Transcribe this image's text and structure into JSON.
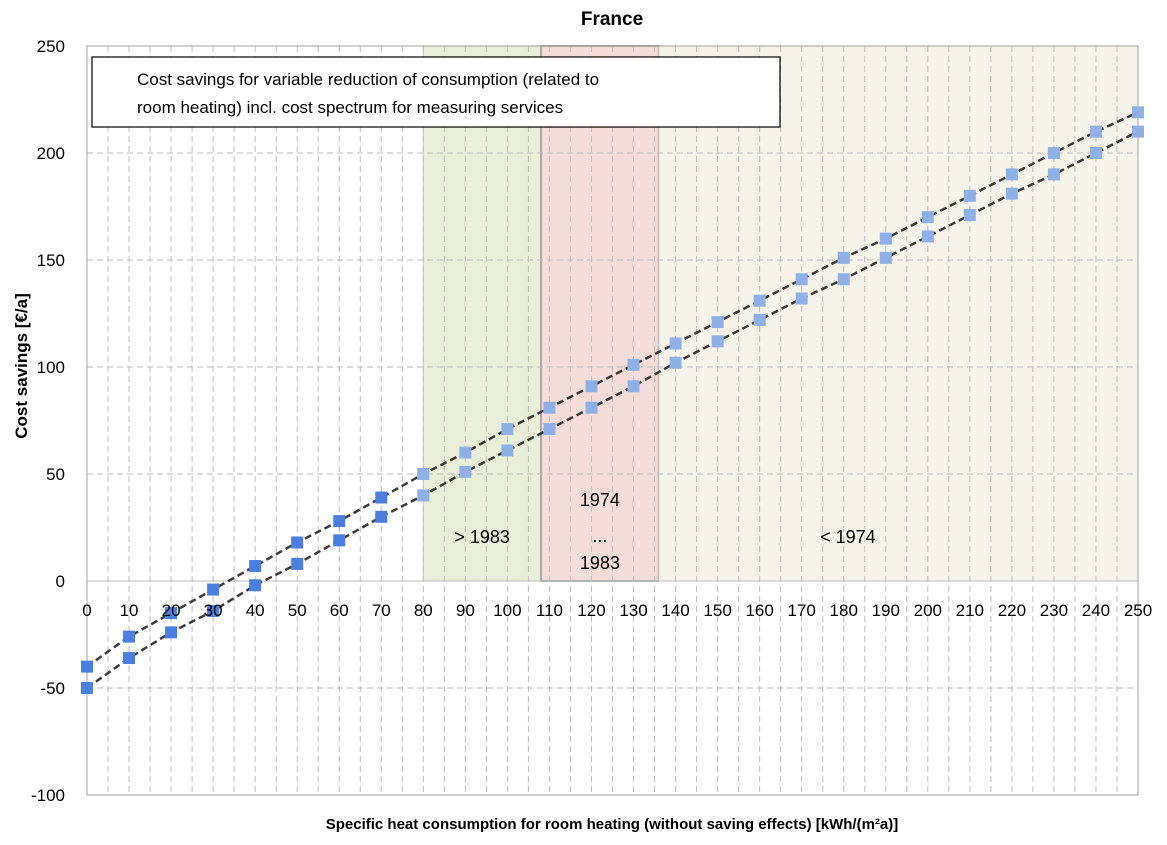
{
  "chart_data": {
    "type": "line",
    "title": "France",
    "xlabel": "Specific heat consumption for room heating (without saving effects) [kWh/(m²a)]",
    "ylabel": "Cost savings [€/a]",
    "xlim": [
      0,
      250
    ],
    "ylim": [
      -100,
      250
    ],
    "x_ticks": [
      0,
      10,
      20,
      30,
      40,
      50,
      60,
      70,
      80,
      90,
      100,
      110,
      120,
      130,
      140,
      150,
      160,
      170,
      180,
      190,
      200,
      210,
      220,
      230,
      240,
      250
    ],
    "y_ticks": [
      -100,
      -50,
      0,
      50,
      100,
      150,
      200,
      250
    ],
    "grid": true,
    "annotation": {
      "line1": "Cost savings for variable reduction of consumption (related to",
      "line2": "room heating) incl. cost spectrum for measuring services"
    },
    "regions": [
      {
        "name": "> 1983",
        "label_lines": [
          "> 1983"
        ],
        "x_range": [
          80,
          108
        ],
        "color": "#e8eed8"
      },
      {
        "name": "1974 ... 1983",
        "label_lines": [
          "1974",
          "...",
          "1983"
        ],
        "x_range": [
          108,
          136
        ],
        "color": "#f4dcd9"
      },
      {
        "name": "< 1974",
        "label_lines": [
          "< 1974"
        ],
        "x_range": [
          136,
          250
        ],
        "color": "#f5f3ea"
      }
    ],
    "x": [
      0,
      10,
      20,
      30,
      40,
      50,
      60,
      70,
      80,
      90,
      100,
      110,
      120,
      130,
      140,
      150,
      160,
      170,
      180,
      190,
      200,
      210,
      220,
      230,
      240,
      250
    ],
    "series": [
      {
        "values": [
          -40,
          -26,
          -15,
          -4,
          7,
          18,
          28,
          39,
          50,
          60,
          71,
          81,
          91,
          101,
          111,
          121,
          131,
          141,
          151,
          160,
          170,
          180,
          190,
          200,
          210,
          219
        ]
      },
      {
        "values": [
          -50,
          -36,
          -24,
          -14,
          -2,
          8,
          19,
          30,
          40,
          51,
          61,
          71,
          81,
          91,
          102,
          112,
          122,
          132,
          141,
          151,
          161,
          171,
          181,
          190,
          200,
          210
        ]
      }
    ],
    "colors": {
      "marker": "#4a7fe0",
      "marker_faded": "#8fb0e6",
      "trend_line": "#1a1a1a",
      "grid": "#bdbdbd"
    }
  }
}
